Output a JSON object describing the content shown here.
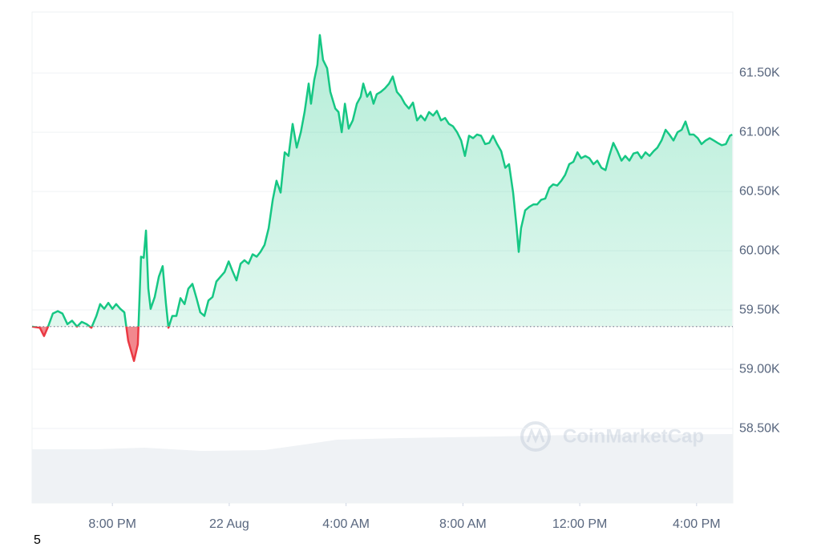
{
  "chart_data": {
    "type": "line",
    "x": [
      17.25,
      17.52,
      17.66,
      17.8,
      17.96,
      18.13,
      18.29,
      18.46,
      18.62,
      18.79,
      18.95,
      19.12,
      19.28,
      19.45,
      19.58,
      19.72,
      19.86,
      20.0,
      20.13,
      20.27,
      20.41,
      20.54,
      20.74,
      20.87,
      20.98,
      21.07,
      21.15,
      21.23,
      21.31,
      21.45,
      21.59,
      21.72,
      21.83,
      21.92,
      22.05,
      22.19,
      22.33,
      22.47,
      22.6,
      22.74,
      22.88,
      23.01,
      23.15,
      23.29,
      23.43,
      23.56,
      23.7,
      23.84,
      23.98,
      24.11,
      24.25,
      24.39,
      24.52,
      24.66,
      24.8,
      24.94,
      25.07,
      25.21,
      25.35,
      25.49,
      25.62,
      25.76,
      25.9,
      26.03,
      26.17,
      26.31,
      26.45,
      26.58,
      26.72,
      26.8,
      26.91,
      27.02,
      27.1,
      27.21,
      27.35,
      27.46,
      27.63,
      27.74,
      27.85,
      27.96,
      28.09,
      28.23,
      28.37,
      28.5,
      28.59,
      28.72,
      28.83,
      28.94,
      29.05,
      29.19,
      29.33,
      29.47,
      29.6,
      29.74,
      29.88,
      30.01,
      30.15,
      30.29,
      30.43,
      30.56,
      30.7,
      30.84,
      30.98,
      31.11,
      31.25,
      31.39,
      31.52,
      31.66,
      31.8,
      31.94,
      32.07,
      32.21,
      32.35,
      32.48,
      32.62,
      32.76,
      32.9,
      33.03,
      33.17,
      33.31,
      33.45,
      33.58,
      33.72,
      33.83,
      33.91,
      33.99,
      34.13,
      34.27,
      34.41,
      34.54,
      34.68,
      34.82,
      34.96,
      35.09,
      35.23,
      35.37,
      35.5,
      35.64,
      35.78,
      35.92,
      36.05,
      36.19,
      36.33,
      36.47,
      36.6,
      36.74,
      36.88,
      37.01,
      37.15,
      37.29,
      37.43,
      37.56,
      37.7,
      37.84,
      37.98,
      38.11,
      38.25,
      38.39,
      38.53,
      38.66,
      38.8,
      38.94,
      39.07,
      39.21,
      39.35,
      39.49,
      39.62,
      39.76,
      39.9,
      40.04,
      40.17,
      40.31,
      40.45,
      40.59,
      40.72,
      40.86,
      41.0,
      41.14,
      41.22
    ],
    "values": [
      59360,
      59350,
      59280,
      59360,
      59470,
      59490,
      59470,
      59380,
      59410,
      59360,
      59400,
      59380,
      59350,
      59450,
      59550,
      59510,
      59560,
      59510,
      59550,
      59510,
      59480,
      59240,
      59070,
      59210,
      59950,
      59940,
      60170,
      59680,
      59510,
      59610,
      59780,
      59870,
      59560,
      59350,
      59450,
      59450,
      59600,
      59550,
      59680,
      59720,
      59600,
      59480,
      59450,
      59580,
      59610,
      59740,
      59780,
      59820,
      59910,
      59830,
      59750,
      59890,
      59920,
      59890,
      59970,
      59950,
      59990,
      60050,
      60190,
      60430,
      60590,
      60490,
      60830,
      60800,
      61070,
      60870,
      61000,
      61170,
      61410,
      61240,
      61440,
      61570,
      61820,
      61610,
      61540,
      61340,
      61200,
      61170,
      61000,
      61240,
      61030,
      61100,
      61240,
      61300,
      61410,
      61300,
      61340,
      61240,
      61320,
      61340,
      61370,
      61410,
      61470,
      61340,
      61300,
      61240,
      61200,
      61250,
      61100,
      61140,
      61100,
      61170,
      61140,
      61180,
      61100,
      61120,
      61070,
      61050,
      61000,
      60930,
      60800,
      60970,
      60950,
      60980,
      60970,
      60900,
      60910,
      60970,
      60900,
      60840,
      60700,
      60730,
      60490,
      60220,
      59990,
      60190,
      60340,
      60370,
      60390,
      60390,
      60430,
      60440,
      60530,
      60560,
      60550,
      60590,
      60640,
      60730,
      60750,
      60830,
      60780,
      60800,
      60780,
      60730,
      60760,
      60700,
      60680,
      60800,
      60910,
      60840,
      60760,
      60800,
      60760,
      60820,
      60830,
      60780,
      60830,
      60800,
      60840,
      60870,
      60930,
      61020,
      60980,
      60930,
      61000,
      61020,
      61090,
      60980,
      60980,
      60950,
      60900,
      60930,
      60950,
      60930,
      60910,
      60890,
      60900,
      60970,
      60980
    ],
    "baseline": 59360,
    "up_color": "#16c784",
    "down_color": "#ea3943",
    "xlim": [
      17.25,
      41.24
    ],
    "xticks": [
      {
        "value": 20,
        "label": "8:00 PM"
      },
      {
        "value": 24,
        "label": "22 Aug"
      },
      {
        "value": 28,
        "label": "4:00 AM"
      },
      {
        "value": 32,
        "label": "8:00 AM"
      },
      {
        "value": 36,
        "label": "12:00 PM"
      },
      {
        "value": 40,
        "label": "4:00 PM"
      }
    ],
    "ylim": [
      57872,
      62014
    ],
    "yticks": [
      {
        "value": 58500,
        "label": "58.50K"
      },
      {
        "value": 59000,
        "label": "59.00K"
      },
      {
        "value": 59500,
        "label": "59.50K"
      },
      {
        "value": 60000,
        "label": "60.00K"
      },
      {
        "value": 60500,
        "label": "60.50K"
      },
      {
        "value": 61000,
        "label": "61.00K"
      },
      {
        "value": 61500,
        "label": "61.50K"
      }
    ],
    "grid": true,
    "watermark": "CoinMarketCap",
    "footer_label": "5"
  }
}
